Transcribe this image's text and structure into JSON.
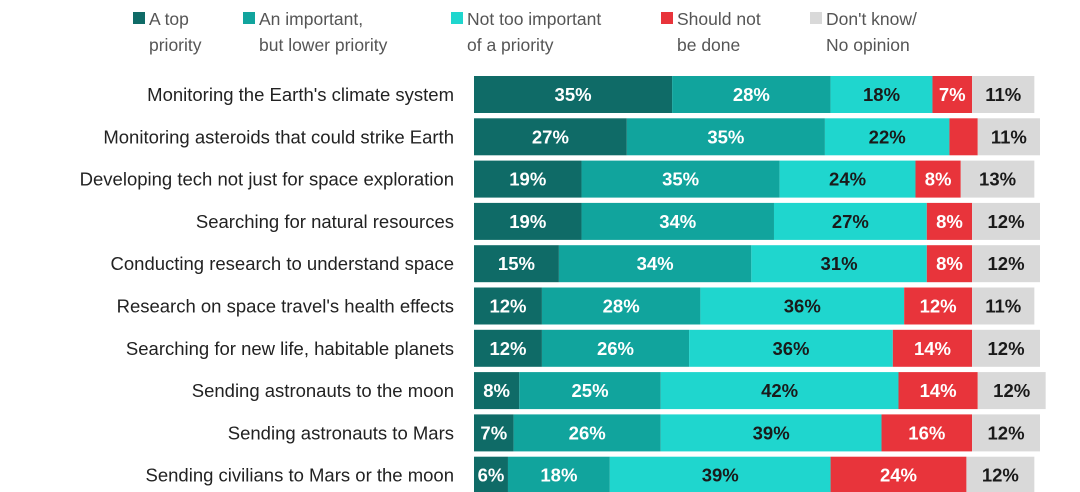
{
  "chart_data": {
    "type": "bar",
    "orientation": "horizontal",
    "stacked": true,
    "legend_position": "top",
    "categories": [
      "Monitoring the Earth's climate system",
      "Monitoring asteroids that could strike Earth",
      "Developing tech not just for space exploration",
      "Searching for natural resources",
      "Conducting research to understand space",
      "Research on space travel's health effects",
      "Searching for new life, habitable planets",
      "Sending astronauts to the moon",
      "Sending astronauts to Mars",
      "Sending civilians to Mars or the moon"
    ],
    "series": [
      {
        "name": "A top\npriority",
        "color": "#0f6b67",
        "label_color": "#ffffff",
        "values": [
          35,
          27,
          19,
          19,
          15,
          12,
          12,
          8,
          7,
          6
        ],
        "labels": [
          "35%",
          "27%",
          "19%",
          "19%",
          "15%",
          "12%",
          "12%",
          "8%",
          "7%",
          "6%"
        ]
      },
      {
        "name": "An important,\nbut lower priority",
        "color": "#11a49d",
        "label_color": "#ffffff",
        "values": [
          28,
          35,
          35,
          34,
          34,
          28,
          26,
          25,
          26,
          18
        ],
        "labels": [
          "28%",
          "35%",
          "35%",
          "34%",
          "34%",
          "28%",
          "26%",
          "25%",
          "26%",
          "18%"
        ]
      },
      {
        "name": "Not too important\nof a priority",
        "color": "#1fd6ce",
        "label_color": "#1a1a1a",
        "values": [
          18,
          22,
          24,
          27,
          31,
          36,
          36,
          42,
          39,
          39
        ],
        "labels": [
          "18%",
          "22%",
          "24%",
          "27%",
          "31%",
          "36%",
          "36%",
          "42%",
          "39%",
          "39%"
        ]
      },
      {
        "name": "Should not\nbe done",
        "color": "#e8343b",
        "label_color": "#ffffff",
        "values": [
          7,
          5,
          8,
          8,
          8,
          12,
          14,
          14,
          16,
          24
        ],
        "labels": [
          "7%",
          "",
          "8%",
          "8%",
          "8%",
          "12%",
          "14%",
          "14%",
          "16%",
          "24%"
        ]
      },
      {
        "name": "Don't know/\nNo opinion",
        "color": "#d9d9d9",
        "label_color": "#1a1a1a",
        "values": [
          11,
          11,
          13,
          12,
          12,
          11,
          12,
          12,
          12,
          12
        ],
        "labels": [
          "11%",
          "11%",
          "13%",
          "12%",
          "12%",
          "11%",
          "12%",
          "12%",
          "12%",
          "12%"
        ]
      }
    ],
    "unit": "%",
    "xlim": [
      0,
      100
    ],
    "grid": false
  }
}
